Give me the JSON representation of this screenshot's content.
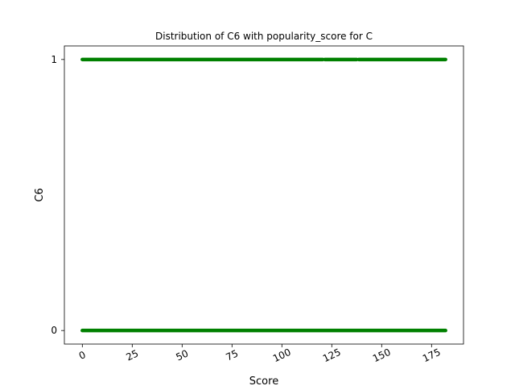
{
  "chart_data": {
    "type": "scatter",
    "title": "Distribution of C6 with popularity_score for C",
    "xlabel": "Score",
    "ylabel": "C6",
    "xlim": [
      -9,
      191
    ],
    "ylim": [
      -0.05,
      1.05
    ],
    "x_ticks": [
      0,
      25,
      50,
      75,
      100,
      125,
      150,
      175
    ],
    "x_tick_labels": [
      "0",
      "25",
      "50",
      "75",
      "100",
      "125",
      "150",
      "175"
    ],
    "y_ticks": [
      0,
      1
    ],
    "y_tick_labels": [
      "0",
      "1"
    ],
    "grid": false,
    "marker_color": "#008000",
    "series": [
      {
        "points_at_y1": {
          "x_min": 0,
          "x_max": 182,
          "gaps": [
            [
              120.5,
              121.5
            ],
            [
              137.5,
              138.5
            ]
          ]
        },
        "points_at_y0": {
          "x_min": 0,
          "x_max": 182,
          "gaps": []
        }
      }
    ]
  }
}
